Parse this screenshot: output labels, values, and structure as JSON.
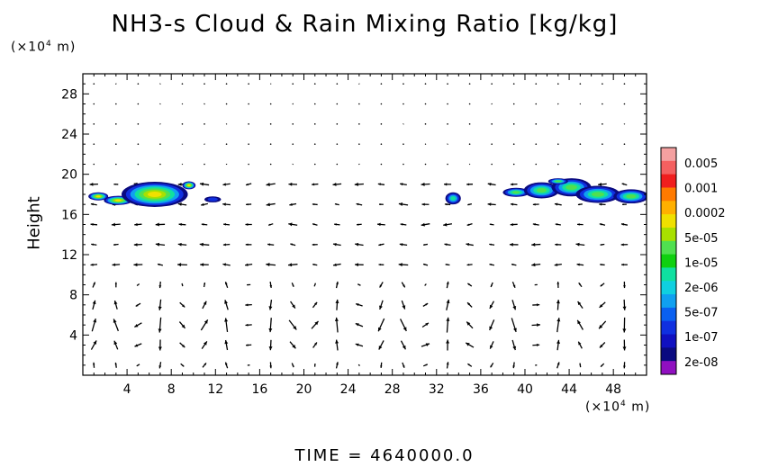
{
  "chart_data": {
    "type": "heatmap",
    "title": "NH3-s Cloud & Rain Mixing Ratio [kg/kg]",
    "ylabel": "Height",
    "xlabel": "",
    "x_unit": {
      "prefix": "(×10",
      "exp": "4",
      "suffix": " m)"
    },
    "y_unit": {
      "prefix": "(×10",
      "exp": "4",
      "suffix": " m)"
    },
    "xlim": [
      0,
      51
    ],
    "ylim": [
      0,
      30
    ],
    "x_ticks": [
      4,
      8,
      12,
      16,
      20,
      24,
      28,
      32,
      36,
      40,
      44,
      48
    ],
    "y_ticks": [
      4,
      8,
      12,
      16,
      20,
      24,
      28
    ],
    "colorbar": {
      "labels": [
        "0.005",
        "0.001",
        "0.0002",
        "5e-05",
        "1e-05",
        "2e-06",
        "5e-07",
        "1e-07",
        "2e-08"
      ],
      "colors_top_to_bottom": [
        "#f4a0a0",
        "#f46060",
        "#f01e1e",
        "#ff7a00",
        "#ffb000",
        "#f0e000",
        "#a8e000",
        "#50e050",
        "#10d010",
        "#10e0a0",
        "#10d0e0",
        "#10a0f0",
        "#0a60f0",
        "#1030e0",
        "#1010c0",
        "#0a0a80",
        "#9010c0"
      ]
    },
    "cloud_regions": [
      {
        "x": [
          0.6,
          10.2
        ],
        "y": [
          16.8,
          19.5
        ],
        "peak_level": "5e-05"
      },
      {
        "x": [
          11.0,
          12.5
        ],
        "y": [
          17.2,
          17.8
        ],
        "peak_level": "1e-07"
      },
      {
        "x": [
          32.8,
          34.2
        ],
        "y": [
          17.0,
          18.2
        ],
        "peak_level": "2e-06"
      },
      {
        "x": [
          38.2,
          51.0
        ],
        "y": [
          17.0,
          19.6
        ],
        "peak_level": "1e-05"
      }
    ],
    "vector_field": "wind vectors on regular grid; strongest vertical cells below height 10",
    "time_label": "TIME  =  4640000.0"
  }
}
